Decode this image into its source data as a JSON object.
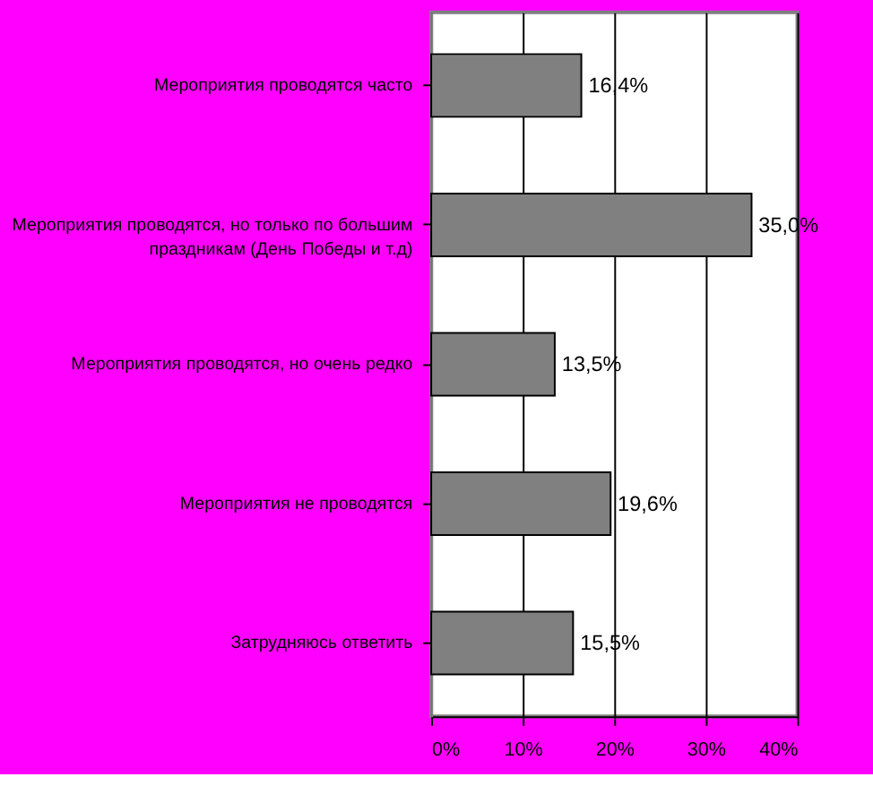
{
  "chart_data": {
    "type": "bar",
    "orientation": "horizontal",
    "categories": [
      "Мероприятия проводятся часто",
      "Мероприятия проводятся, но только по большим праздникам (День Победы и т.д)",
      "Мероприятия проводятся, но очень редко",
      "Мероприятия  не проводятся",
      "Затрудняюсь ответить"
    ],
    "values": [
      16.4,
      35.0,
      13.5,
      19.6,
      15.5
    ],
    "value_labels": [
      "16,4%",
      "35,0%",
      "13,5%",
      "19,6%",
      "15,5%"
    ],
    "color": "#808080",
    "xlim": [
      0,
      40
    ],
    "xticks": [
      {
        "value": 0,
        "label": "0%"
      },
      {
        "value": 10,
        "label": "10%"
      },
      {
        "value": 20,
        "label": "20%"
      },
      {
        "value": 30,
        "label": "30%"
      },
      {
        "value": 40,
        "label": "40%"
      }
    ],
    "grid": "x"
  }
}
